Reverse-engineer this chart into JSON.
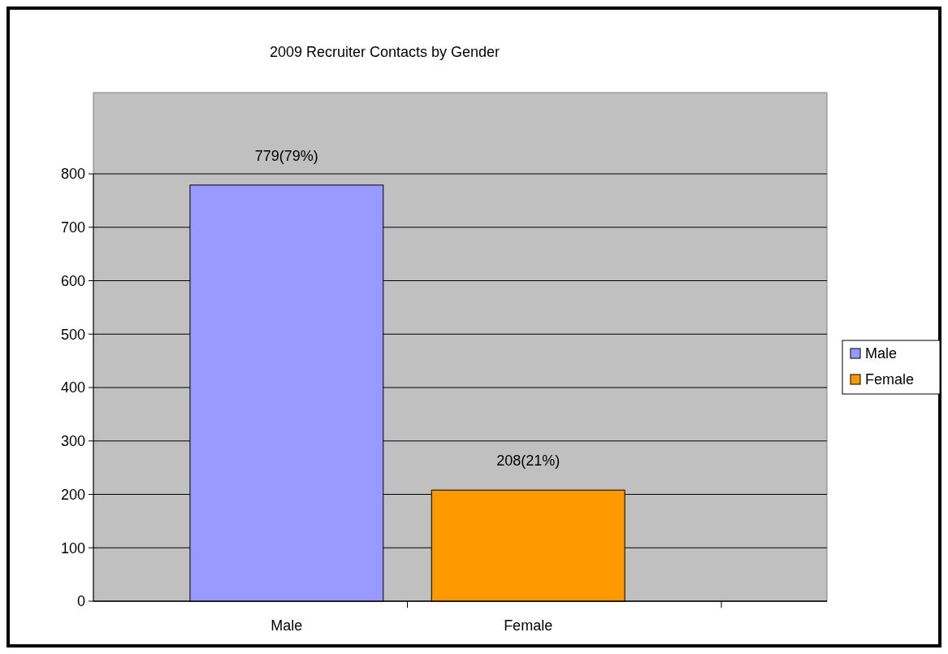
{
  "chart_data": {
    "type": "bar",
    "title": "2009 Recruiter Contacts by Gender",
    "categories": [
      "Male",
      "Female"
    ],
    "series": [
      {
        "name": "Male",
        "color": "#9999ff",
        "values": [
          779,
          null
        ],
        "value_labels": [
          "779(79%)",
          null
        ]
      },
      {
        "name": "Female",
        "color": "#ff9900",
        "values": [
          null,
          208
        ],
        "value_labels": [
          null,
          "208(21%)"
        ]
      }
    ],
    "ylim": [
      0,
      800
    ],
    "yticks": [
      0,
      100,
      200,
      300,
      400,
      500,
      600,
      700,
      800
    ],
    "grid": "y",
    "legend": "right"
  }
}
